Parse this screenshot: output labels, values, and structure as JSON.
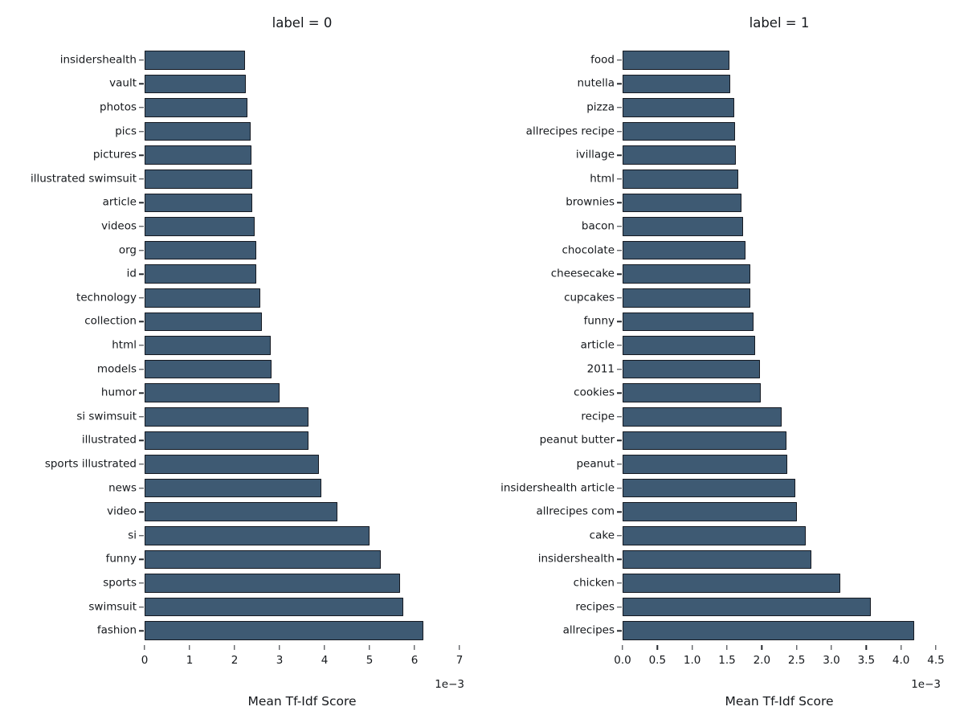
{
  "figure": {
    "background_color": "#ffffff",
    "bar_color": "#3E5A73",
    "bar_edge_color": "#161A22",
    "text_color": "#15181c",
    "x_axis_label": "Mean Tf-Idf Score",
    "offset_label": "1e−3"
  },
  "chart_data": [
    {
      "type": "bar",
      "orientation": "horizontal",
      "title": "label = 0",
      "xlabel": "Mean Tf-Idf Score",
      "value_unit_scale": "1e-3",
      "xlim": [
        0,
        7.2
      ],
      "grid": false,
      "legend": "none",
      "xticks": [
        0,
        1,
        2,
        3,
        4,
        5,
        6,
        7
      ],
      "xtick_labels": [
        "0",
        "1",
        "2",
        "3",
        "4",
        "5",
        "6",
        "7"
      ],
      "categories": [
        "insidershealth",
        "vault",
        "photos",
        "pics",
        "pictures",
        "illustrated swimsuit",
        "article",
        "videos",
        "org",
        "id",
        "technology",
        "collection",
        "html",
        "models",
        "humor",
        "si swimsuit",
        "illustrated",
        "sports illustrated",
        "news",
        "video",
        "si",
        "funny",
        "sports",
        "swimsuit",
        "fashion"
      ],
      "values": [
        2.23,
        2.25,
        2.28,
        2.36,
        2.38,
        2.39,
        2.4,
        2.45,
        2.48,
        2.49,
        2.57,
        2.6,
        2.8,
        2.82,
        3.0,
        3.64,
        3.65,
        3.88,
        3.92,
        4.29,
        5.0,
        5.25,
        5.68,
        5.75,
        6.2
      ]
    },
    {
      "type": "bar",
      "orientation": "horizontal",
      "title": "label = 1",
      "xlabel": "Mean Tf-Idf Score",
      "value_unit_scale": "1e-3",
      "xlim": [
        0,
        4.65
      ],
      "grid": false,
      "legend": "none",
      "xticks": [
        0,
        0.5,
        1,
        1.5,
        2,
        2.5,
        3,
        3.5,
        4,
        4.5
      ],
      "xtick_labels": [
        "0.0",
        "0.5",
        "1.0",
        "1.5",
        "2.0",
        "2.5",
        "3.0",
        "3.5",
        "4.0",
        "4.5"
      ],
      "categories": [
        "food",
        "nutella",
        "pizza",
        "allrecipes recipe",
        "ivillage",
        "html",
        "brownies",
        "bacon",
        "chocolate",
        "cheesecake",
        "cupcakes",
        "funny",
        "article",
        "2011",
        "cookies",
        "recipe",
        "peanut butter",
        "peanut",
        "insidershealth article",
        "allrecipes com",
        "cake",
        "insidershealth",
        "chicken",
        "recipes",
        "allrecipes"
      ],
      "values": [
        1.54,
        1.55,
        1.6,
        1.61,
        1.63,
        1.66,
        1.71,
        1.73,
        1.76,
        1.83,
        1.84,
        1.88,
        1.9,
        1.97,
        1.99,
        2.29,
        2.35,
        2.37,
        2.48,
        2.5,
        2.63,
        2.71,
        3.13,
        3.56,
        4.19
      ]
    }
  ]
}
